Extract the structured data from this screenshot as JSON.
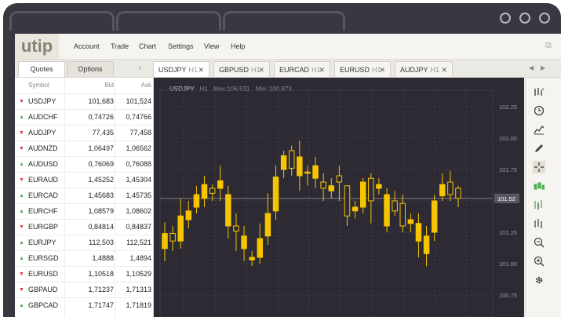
{
  "app": {
    "logo": "utip"
  },
  "menu": [
    "Account",
    "Trade",
    "Chart",
    "Settings",
    "View",
    "Help"
  ],
  "left_tabs": [
    {
      "label": "Quotes",
      "active": true
    },
    {
      "label": "Options",
      "active": false
    }
  ],
  "chart_tabs": [
    {
      "symbol": "USDJPY",
      "tf": "H1",
      "active": true
    },
    {
      "symbol": "GBPUSD",
      "tf": "H1",
      "active": false
    },
    {
      "symbol": "EURCAD",
      "tf": "H1",
      "active": false
    },
    {
      "symbol": "EURUSD",
      "tf": "H1",
      "active": false
    },
    {
      "symbol": "AUDJPY",
      "tf": "H1",
      "active": false
    }
  ],
  "close_glyph": "✕",
  "quotes": {
    "headers": {
      "symbol": "Symbol",
      "bid": "Bid",
      "ask": "Ask"
    },
    "rows": [
      {
        "symbol": "USDJPY",
        "bid": "101,683",
        "ask": "101,524",
        "dir": "down"
      },
      {
        "symbol": "AUDCHF",
        "bid": "0,74726",
        "ask": "0,74766",
        "dir": "up"
      },
      {
        "symbol": "AUDJPY",
        "bid": "77,435",
        "ask": "77,458",
        "dir": "down"
      },
      {
        "symbol": "AUDNZD",
        "bid": "1,06497",
        "ask": "1,06562",
        "dir": "down"
      },
      {
        "symbol": "AUDUSD",
        "bid": "0,76069",
        "ask": "0,76088",
        "dir": "up"
      },
      {
        "symbol": "EURAUD",
        "bid": "1,45252",
        "ask": "1,45304",
        "dir": "down"
      },
      {
        "symbol": "EURCAD",
        "bid": "1,45683",
        "ask": "1,45735",
        "dir": "up"
      },
      {
        "symbol": "EURCHF",
        "bid": "1,08579",
        "ask": "1,08602",
        "dir": "up"
      },
      {
        "symbol": "EURGBP",
        "bid": "0,84814",
        "ask": "0,84837",
        "dir": "down"
      },
      {
        "symbol": "EURJPY",
        "bid": "112,503",
        "ask": "112,521",
        "dir": "up"
      },
      {
        "symbol": "EURSGD",
        "bid": "1,4888",
        "ask": "1,4894",
        "dir": "up"
      },
      {
        "symbol": "EURUSD",
        "bid": "1,10518",
        "ask": "1,10529",
        "dir": "down"
      },
      {
        "symbol": "GBPAUD",
        "bid": "1,71237",
        "ask": "1,71313",
        "dir": "down"
      },
      {
        "symbol": "GBPCAD",
        "bid": "1,71747",
        "ask": "1,71819",
        "dir": "up"
      }
    ]
  },
  "chart": {
    "symbol": "USDJPY",
    "tf": "H1",
    "max_label": "Max:106.531",
    "min_label": "Min: 100.873",
    "current_price": "101.52",
    "y_ticks": [
      "102.25",
      "102.00",
      "101.75",
      "101.50",
      "101.25",
      "101.00",
      "100.75"
    ],
    "colors": {
      "bg": "#2d2a33",
      "candle": "#f6c500",
      "grid": "#4a4652",
      "up": "#4caf50",
      "down": "#e53935"
    }
  },
  "chart_data": {
    "type": "candlestick",
    "ylim": [
      100.7,
      102.3
    ],
    "y_ticks": [
      100.75,
      101.0,
      101.25,
      101.5,
      101.75,
      102.0,
      102.25
    ],
    "current_price": 101.52,
    "candles": [
      {
        "o": 101.12,
        "h": 101.33,
        "l": 101.02,
        "c": 101.24,
        "filled": true
      },
      {
        "o": 101.18,
        "h": 101.3,
        "l": 101.1,
        "c": 101.24,
        "filled": false
      },
      {
        "o": 101.18,
        "h": 101.52,
        "l": 101.12,
        "c": 101.38,
        "filled": true
      },
      {
        "o": 101.35,
        "h": 101.5,
        "l": 101.28,
        "c": 101.42,
        "filled": true
      },
      {
        "o": 101.45,
        "h": 101.62,
        "l": 101.4,
        "c": 101.55,
        "filled": true
      },
      {
        "o": 101.52,
        "h": 101.7,
        "l": 101.45,
        "c": 101.63,
        "filled": true
      },
      {
        "o": 101.56,
        "h": 101.63,
        "l": 101.5,
        "c": 101.6,
        "filled": false
      },
      {
        "o": 101.6,
        "h": 101.78,
        "l": 101.5,
        "c": 101.66,
        "filled": true
      },
      {
        "o": 101.55,
        "h": 101.62,
        "l": 101.2,
        "c": 101.3,
        "filled": true
      },
      {
        "o": 101.26,
        "h": 101.4,
        "l": 101.1,
        "c": 101.3,
        "filled": false
      },
      {
        "o": 101.22,
        "h": 101.3,
        "l": 101.02,
        "c": 101.12,
        "filled": true
      },
      {
        "o": 101.03,
        "h": 101.1,
        "l": 100.98,
        "c": 101.05,
        "filled": true
      },
      {
        "o": 101.05,
        "h": 101.32,
        "l": 101.0,
        "c": 101.2,
        "filled": true
      },
      {
        "o": 101.22,
        "h": 101.56,
        "l": 101.15,
        "c": 101.4,
        "filled": true
      },
      {
        "o": 101.42,
        "h": 101.78,
        "l": 101.35,
        "c": 101.69,
        "filled": true
      },
      {
        "o": 101.75,
        "h": 101.9,
        "l": 101.68,
        "c": 101.86,
        "filled": true
      },
      {
        "o": 101.76,
        "h": 101.94,
        "l": 101.7,
        "c": 101.9,
        "filled": false
      },
      {
        "o": 101.85,
        "h": 101.98,
        "l": 101.58,
        "c": 101.7,
        "filled": true
      },
      {
        "o": 101.73,
        "h": 101.78,
        "l": 101.62,
        "c": 101.72,
        "filled": true
      },
      {
        "o": 101.68,
        "h": 101.85,
        "l": 101.6,
        "c": 101.78,
        "filled": true
      },
      {
        "o": 101.6,
        "h": 101.72,
        "l": 101.5,
        "c": 101.65,
        "filled": false
      },
      {
        "o": 101.58,
        "h": 101.68,
        "l": 101.52,
        "c": 101.62,
        "filled": true
      },
      {
        "o": 101.7,
        "h": 101.78,
        "l": 101.5,
        "c": 101.65,
        "filled": false
      },
      {
        "o": 101.38,
        "h": 101.62,
        "l": 101.3,
        "c": 101.62,
        "filled": false
      },
      {
        "o": 101.42,
        "h": 101.5,
        "l": 101.36,
        "c": 101.45,
        "filled": true
      },
      {
        "o": 101.45,
        "h": 101.68,
        "l": 101.4,
        "c": 101.65,
        "filled": true
      },
      {
        "o": 101.5,
        "h": 101.72,
        "l": 101.32,
        "c": 101.68,
        "filled": false
      },
      {
        "o": 101.6,
        "h": 101.68,
        "l": 101.55,
        "c": 101.63,
        "filled": true
      },
      {
        "o": 101.3,
        "h": 101.6,
        "l": 101.25,
        "c": 101.55,
        "filled": true
      },
      {
        "o": 101.42,
        "h": 101.58,
        "l": 101.38,
        "c": 101.5,
        "filled": false
      },
      {
        "o": 101.3,
        "h": 101.55,
        "l": 101.25,
        "c": 101.48,
        "filled": false
      },
      {
        "o": 101.32,
        "h": 101.4,
        "l": 101.25,
        "c": 101.35,
        "filled": true
      },
      {
        "o": 101.18,
        "h": 101.4,
        "l": 101.05,
        "c": 101.32,
        "filled": true
      },
      {
        "o": 101.22,
        "h": 101.3,
        "l": 100.98,
        "c": 101.08,
        "filled": true
      },
      {
        "o": 101.25,
        "h": 101.55,
        "l": 101.18,
        "c": 101.5,
        "filled": true
      },
      {
        "o": 101.54,
        "h": 101.72,
        "l": 101.5,
        "c": 101.63,
        "filled": true
      },
      {
        "o": 101.55,
        "h": 101.74,
        "l": 101.5,
        "c": 101.65,
        "filled": false
      },
      {
        "o": 101.52,
        "h": 101.62,
        "l": 101.45,
        "c": 101.6,
        "filled": false
      }
    ]
  }
}
